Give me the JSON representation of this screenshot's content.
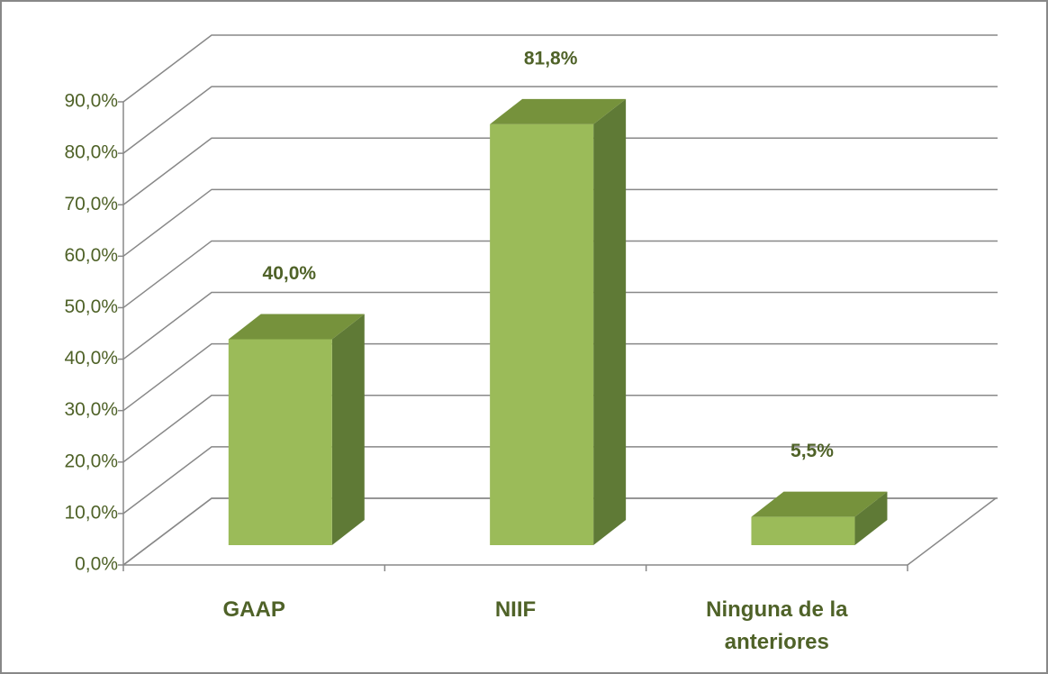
{
  "chart_data": {
    "type": "bar3d",
    "categories": [
      "GAAP",
      "NIIF",
      "Ninguna de la anteriores"
    ],
    "values": [
      40.0,
      81.8,
      5.5
    ],
    "value_labels": [
      "40,0%",
      "81,8%",
      "5,5%"
    ],
    "color": "#9bbb59",
    "ylim": [
      0,
      90
    ],
    "yticks": [
      {
        "value": 0,
        "label": "0,0%"
      },
      {
        "value": 10,
        "label": "10,0%"
      },
      {
        "value": 20,
        "label": "20,0%"
      },
      {
        "value": 30,
        "label": "30,0%"
      },
      {
        "value": 40,
        "label": "40,0%"
      },
      {
        "value": 50,
        "label": "50,0%"
      },
      {
        "value": 60,
        "label": "60,0%"
      },
      {
        "value": 70,
        "label": "70,0%"
      },
      {
        "value": 80,
        "label": "80,0%"
      },
      {
        "value": 90,
        "label": "90,0%"
      }
    ],
    "grid": true
  }
}
